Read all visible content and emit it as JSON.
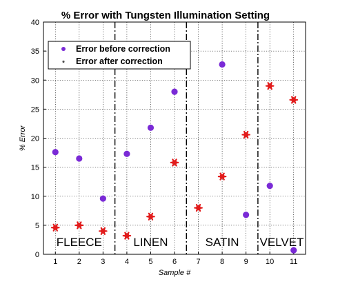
{
  "chart_data": {
    "type": "scatter",
    "title": "% Error with Tungsten Illumination Setting",
    "xlabel": "Sample #",
    "ylabel": "% Error",
    "x": [
      1,
      2,
      3,
      4,
      5,
      6,
      7,
      8,
      9,
      10,
      11
    ],
    "xlim": [
      0.5,
      11.5
    ],
    "ylim": [
      0,
      40
    ],
    "yticks": [
      0,
      5,
      10,
      15,
      20,
      25,
      30,
      35,
      40
    ],
    "grid": true,
    "legend_position": "top-left",
    "series": [
      {
        "name": "Error before correction",
        "marker": "dot",
        "color": "#7a2ad6",
        "values": [
          17.6,
          16.5,
          9.6,
          17.3,
          21.8,
          28.0,
          null,
          32.7,
          6.8,
          11.8,
          0.7
        ]
      },
      {
        "name": "Error after correction",
        "marker": "star",
        "color": "#e21b1b",
        "values": [
          4.6,
          5.0,
          4.0,
          3.2,
          6.5,
          15.8,
          8.0,
          13.4,
          20.6,
          29.0,
          26.6
        ]
      }
    ],
    "separators_x": [
      3.5,
      6.5,
      9.5
    ],
    "regions": [
      {
        "label": "FLEECE",
        "x": 2.0
      },
      {
        "label": "LINEN",
        "x": 5.0
      },
      {
        "label": "SATIN",
        "x": 8.0
      },
      {
        "label": "VELVET",
        "x": 10.5
      }
    ]
  }
}
